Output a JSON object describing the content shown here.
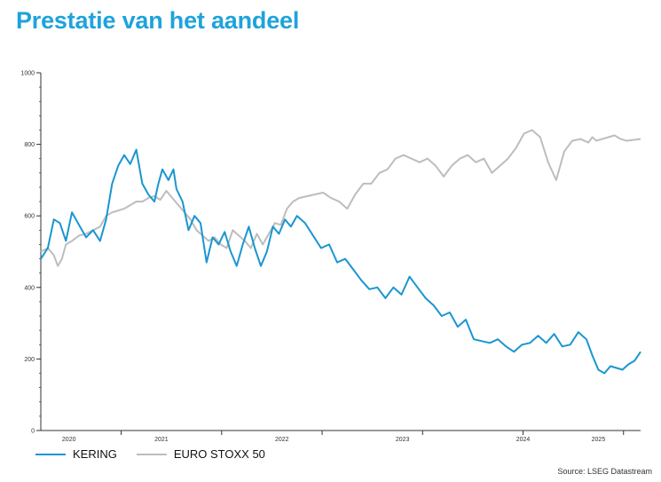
{
  "page": {
    "title": "Prestatie van het aandeel",
    "source": "Source: LSEG Datastream"
  },
  "colors": {
    "title": "#1ea3dc",
    "kering": "#1a96d0",
    "stoxx": "#bdbdbd",
    "axis": "#333333"
  },
  "chart_data": {
    "type": "line",
    "title": "Prestatie van het aandeel",
    "xlabel": "",
    "ylabel": "",
    "xlim": [
      2019.45,
      2025.42
    ],
    "ylim": [
      0,
      1000
    ],
    "yticks": [
      0,
      200,
      400,
      600,
      800,
      1000
    ],
    "xticks": [
      {
        "label": "2020",
        "x": 2019.73
      },
      {
        "label": "2021",
        "x": 2020.65
      },
      {
        "label": "2022",
        "x": 2021.85
      },
      {
        "label": "2023",
        "x": 2023.05
      },
      {
        "label": "2024",
        "x": 2024.25
      },
      {
        "label": "2025",
        "x": 2025.0
      }
    ],
    "grid": false,
    "legend_position": "bottom-left",
    "series": [
      {
        "name": "KERING",
        "color": "#1a96d0",
        "x": [
          2019.45,
          2019.52,
          2019.58,
          2019.64,
          2019.7,
          2019.76,
          2019.83,
          2019.9,
          2019.97,
          2020.04,
          2020.1,
          2020.16,
          2020.22,
          2020.28,
          2020.34,
          2020.4,
          2020.46,
          2020.52,
          2020.58,
          2020.62,
          2020.66,
          2020.72,
          2020.77,
          2020.8,
          2020.86,
          2020.92,
          2020.98,
          2021.04,
          2021.1,
          2021.16,
          2021.22,
          2021.28,
          2021.34,
          2021.4,
          2021.46,
          2021.52,
          2021.58,
          2021.64,
          2021.7,
          2021.76,
          2021.82,
          2021.88,
          2021.94,
          2022.0,
          2022.08,
          2022.16,
          2022.24,
          2022.32,
          2022.4,
          2022.48,
          2022.56,
          2022.64,
          2022.72,
          2022.8,
          2022.88,
          2022.96,
          2023.04,
          2023.12,
          2023.2,
          2023.28,
          2023.36,
          2023.44,
          2023.52,
          2023.6,
          2023.68,
          2023.76,
          2023.84,
          2023.92,
          2024.0,
          2024.08,
          2024.16,
          2024.24,
          2024.32,
          2024.4,
          2024.48,
          2024.56,
          2024.64,
          2024.72,
          2024.8,
          2024.88,
          2024.94,
          2025.0,
          2025.06,
          2025.12,
          2025.18,
          2025.24,
          2025.3,
          2025.36,
          2025.42
        ],
        "values": [
          480,
          510,
          590,
          580,
          530,
          610,
          575,
          540,
          560,
          530,
          590,
          690,
          740,
          770,
          745,
          785,
          690,
          660,
          640,
          690,
          730,
          700,
          730,
          675,
          640,
          560,
          600,
          580,
          470,
          540,
          520,
          555,
          500,
          460,
          520,
          570,
          510,
          460,
          500,
          570,
          550,
          590,
          570,
          600,
          580,
          545,
          510,
          520,
          470,
          480,
          450,
          420,
          395,
          400,
          370,
          400,
          380,
          430,
          400,
          370,
          350,
          320,
          330,
          290,
          310,
          255,
          250,
          245,
          255,
          235,
          220,
          240,
          245,
          265,
          245,
          270,
          235,
          240,
          275,
          255,
          210,
          170,
          160,
          180,
          175,
          170,
          185,
          195,
          220
        ]
      },
      {
        "name": "EURO STOXX 50",
        "color": "#bdbdbd",
        "x": [
          2019.45,
          2019.52,
          2019.58,
          2019.62,
          2019.66,
          2019.7,
          2019.76,
          2019.83,
          2019.9,
          2019.97,
          2020.04,
          2020.1,
          2020.16,
          2020.22,
          2020.28,
          2020.34,
          2020.4,
          2020.46,
          2020.52,
          2020.58,
          2020.64,
          2020.7,
          2020.76,
          2020.82,
          2020.88,
          2020.94,
          2021.0,
          2021.06,
          2021.12,
          2021.18,
          2021.24,
          2021.3,
          2021.36,
          2021.42,
          2021.48,
          2021.54,
          2021.6,
          2021.66,
          2021.72,
          2021.78,
          2021.84,
          2021.9,
          2021.96,
          2022.02,
          2022.1,
          2022.18,
          2022.26,
          2022.34,
          2022.42,
          2022.5,
          2022.58,
          2022.66,
          2022.74,
          2022.82,
          2022.9,
          2022.98,
          2023.06,
          2023.14,
          2023.22,
          2023.3,
          2023.38,
          2023.46,
          2023.54,
          2023.62,
          2023.7,
          2023.78,
          2023.86,
          2023.94,
          2024.02,
          2024.1,
          2024.18,
          2024.26,
          2024.34,
          2024.42,
          2024.5,
          2024.58,
          2024.66,
          2024.74,
          2024.82,
          2024.9,
          2024.94,
          2024.98,
          2025.04,
          2025.1,
          2025.16,
          2025.22,
          2025.28,
          2025.34,
          2025.42
        ],
        "values": [
          500,
          510,
          490,
          460,
          480,
          520,
          530,
          545,
          550,
          560,
          570,
          600,
          610,
          615,
          620,
          630,
          640,
          640,
          650,
          655,
          645,
          670,
          650,
          630,
          610,
          590,
          560,
          545,
          530,
          540,
          520,
          510,
          560,
          545,
          530,
          510,
          550,
          520,
          550,
          580,
          575,
          620,
          640,
          650,
          655,
          660,
          665,
          650,
          640,
          620,
          660,
          690,
          690,
          720,
          730,
          760,
          770,
          760,
          750,
          760,
          740,
          710,
          740,
          760,
          770,
          750,
          760,
          720,
          740,
          760,
          790,
          830,
          840,
          820,
          750,
          700,
          780,
          810,
          815,
          805,
          820,
          810,
          815,
          820,
          825,
          815,
          810,
          812,
          815
        ]
      }
    ]
  }
}
